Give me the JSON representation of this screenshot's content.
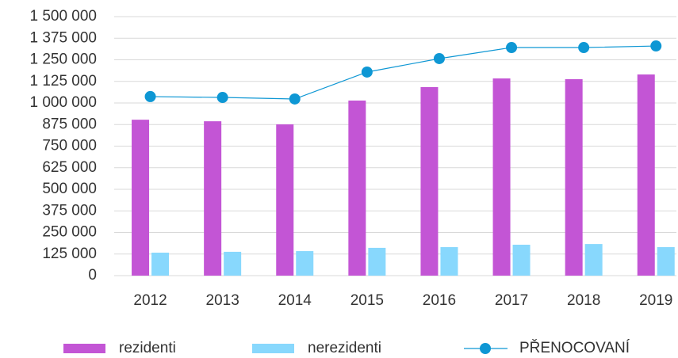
{
  "chart_data": {
    "type": "bar_line",
    "categories": [
      "2012",
      "2013",
      "2014",
      "2015",
      "2016",
      "2017",
      "2018",
      "2019"
    ],
    "series": [
      {
        "name": "rezidenti",
        "type": "bar",
        "color": "#c355d5",
        "values": [
          903000,
          894000,
          876000,
          1014000,
          1092000,
          1142000,
          1138000,
          1165000
        ]
      },
      {
        "name": "nerezidenti",
        "type": "bar",
        "color": "#88d8fd",
        "values": [
          133000,
          138000,
          142000,
          161000,
          165000,
          179000,
          183000,
          165000
        ]
      },
      {
        "name": "PŘENOCOVANÍ",
        "type": "line",
        "color": "#0e97d4",
        "values": [
          1037000,
          1032000,
          1023000,
          1179000,
          1257000,
          1321000,
          1321000,
          1330000
        ]
      }
    ],
    "ylim": [
      0,
      1500000
    ],
    "yticks": [
      0,
      {
        "value": 125000,
        "label": "125 000"
      },
      {
        "value": 250000,
        "label": "250 000"
      },
      {
        "value": 375000,
        "label": "375 000"
      },
      {
        "value": 500000,
        "label": "500 000"
      },
      {
        "value": 625000,
        "label": "625 000"
      },
      {
        "value": 750000,
        "label": "750 000"
      },
      {
        "value": 875000,
        "label": "875 000"
      },
      {
        "value": 1000000,
        "label": "1 000 000"
      },
      {
        "value": 1125000,
        "label": "1 125 000"
      },
      {
        "value": 1250000,
        "label": "1 250 000"
      },
      {
        "value": 1375000,
        "label": "1 375 000"
      },
      {
        "value": 1500000,
        "label": "1 500 000"
      }
    ],
    "grid": true,
    "legend": "bottom"
  }
}
